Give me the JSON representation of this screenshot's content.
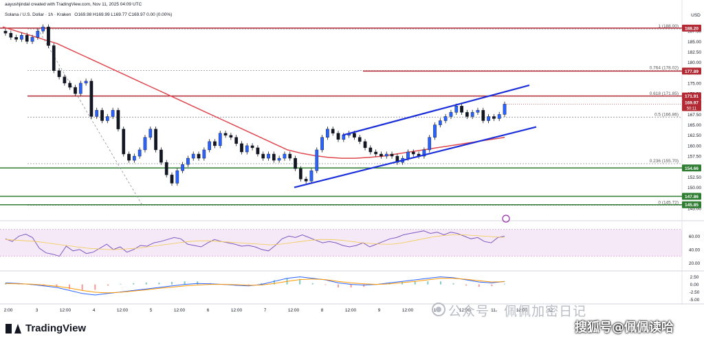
{
  "header": {
    "created_by": "aayushjindal created with TradingView.com, Nov 11, 2025 04:09 UTC",
    "symbol_line": "Solana / U.S. Dollar · 1h · Kraken",
    "ohlc": "O169.98 H169.99 L169.77 C169.97 0.00 (0.00%)"
  },
  "branding": {
    "logo_text": "TradingView",
    "watermark_main": "公众号 · 佩佩加密日记",
    "watermark_small": "搜狐号@佩佩读哈"
  },
  "chart_data": {
    "type": "line",
    "currency": "USD",
    "ylim": [
      142.5,
      190
    ],
    "yticks": [
      145.0,
      147.5,
      150.0,
      152.5,
      155.0,
      157.5,
      160.0,
      162.5,
      165.0,
      167.5,
      170.0,
      172.5,
      175.0,
      177.5,
      180.0,
      182.5,
      185.0,
      187.5
    ],
    "xticks": [
      "2:00",
      "3",
      "12:00",
      "4",
      "12:00",
      "5",
      "12:00",
      "6",
      "12:00",
      "7",
      "12:00",
      "8",
      "12:00",
      "9",
      "12:00",
      "10",
      "12:00",
      "11",
      "12:00",
      "12"
    ],
    "price_series": {
      "name": "SOL/USD",
      "values": [
        187.0,
        186.0,
        185.5,
        186.5,
        185.0,
        186.0,
        187.5,
        188.5,
        184.0,
        178.0,
        176.5,
        175.0,
        174.0,
        172.5,
        175.0,
        175.5,
        167.0,
        168.5,
        166.0,
        167.0,
        168.5,
        164.0,
        158.0,
        156.5,
        157.5,
        159.0,
        162.0,
        164.0,
        159.0,
        156.0,
        153.0,
        151.0,
        154.0,
        155.5,
        157.0,
        158.0,
        157.0,
        159.0,
        161.0,
        160.0,
        163.0,
        162.5,
        162.0,
        160.5,
        158.5,
        160.0,
        159.5,
        158.0,
        157.0,
        158.0,
        156.5,
        157.0,
        158.0,
        157.0,
        154.5,
        152.0,
        151.5,
        154.0,
        159.0,
        162.0,
        164.0,
        163.0,
        161.5,
        162.5,
        163.0,
        162.0,
        161.0,
        159.5,
        158.5,
        158.0,
        157.5,
        158.0,
        157.5,
        156.0,
        157.0,
        158.5,
        158.0,
        157.5,
        159.0,
        162.0,
        165.0,
        166.0,
        167.0,
        168.0,
        169.5,
        168.0,
        167.0,
        168.0,
        168.5,
        166.0,
        167.0,
        166.5,
        167.5,
        169.97
      ]
    },
    "ma_series": {
      "name": "MA",
      "values": [
        188.5,
        187.5,
        186.5,
        185.5,
        184.5,
        183.0,
        181.5,
        180.0,
        178.5,
        177.0,
        175.5,
        174.0,
        172.5,
        171.0,
        169.5,
        168.0,
        166.5,
        165.0,
        163.5,
        162.0,
        160.5,
        159.0,
        158.2,
        157.6,
        157.2,
        157.0,
        157.0,
        157.2,
        157.5,
        158.0,
        158.5,
        159.0,
        159.5,
        160.0,
        160.5,
        161.0,
        161.5,
        162.0
      ]
    },
    "fib_levels": [
      {
        "ratio": "1",
        "price": 188.0,
        "label": "1 (188.00)"
      },
      {
        "ratio": "0.764",
        "price": 178.02,
        "label": "0.764 (178.02)"
      },
      {
        "ratio": "0.618",
        "price": 171.85,
        "label": "0.618 (171.85)"
      },
      {
        "ratio": "0.5",
        "price": 166.86,
        "label": "0.5 (166.86)"
      },
      {
        "ratio": "0.236",
        "price": 155.7,
        "label": "0.236 (155.70)"
      },
      {
        "ratio": "0",
        "price": 145.72,
        "label": "0 (145.72)"
      }
    ],
    "horizontal_levels": [
      {
        "price": 188.2,
        "label": "188.20",
        "color": "#b22833"
      },
      {
        "price": 177.89,
        "label": "177.89",
        "color": "#b22833"
      },
      {
        "price": 171.91,
        "label": "171.91",
        "color": "#b22833"
      },
      {
        "price": 154.66,
        "label": "154.66",
        "color": "#2e7d32"
      },
      {
        "price": 147.86,
        "label": "147.86",
        "color": "#2e7d32"
      },
      {
        "price": 145.85,
        "label": "145.85",
        "color": "#2e7d32"
      }
    ],
    "current_price": {
      "price": 169.97,
      "label": "169.97",
      "countdown": "50:11"
    },
    "channel": {
      "upper": [
        [
          162.5,
          0
        ],
        [
          174.5,
          1
        ]
      ],
      "lower": [
        [
          150.0,
          0
        ],
        [
          164.5,
          1
        ]
      ]
    },
    "rsi": {
      "yticks": [
        20.0,
        40.0,
        60.0
      ],
      "band": [
        30,
        70
      ],
      "values": [
        56,
        52,
        60,
        63,
        58,
        42,
        35,
        33,
        30,
        45,
        38,
        40,
        34,
        36,
        42,
        48,
        40,
        44,
        36,
        40,
        46,
        45,
        50,
        52,
        55,
        58,
        56,
        48,
        46,
        44,
        50,
        55,
        52,
        50,
        48,
        45,
        46,
        44,
        40,
        38,
        46,
        56,
        60,
        58,
        62,
        58,
        54,
        50,
        52,
        50,
        46,
        44,
        46,
        50,
        44,
        48,
        52,
        56,
        58,
        62,
        64,
        66,
        68,
        64,
        66,
        62,
        66,
        64,
        60,
        56,
        58,
        52,
        50,
        58,
        60
      ],
      "signal": [
        55,
        54,
        53,
        52,
        50,
        48,
        46,
        44,
        42,
        41,
        40,
        40,
        41,
        42,
        44,
        46,
        48,
        50,
        52,
        53,
        53,
        52,
        51,
        50,
        49,
        48,
        47,
        48,
        50,
        52,
        54,
        55,
        55,
        54,
        52,
        50,
        49,
        48,
        48,
        50,
        53,
        56,
        59,
        61,
        62,
        62,
        61,
        60,
        59,
        58
      ]
    },
    "macd": {
      "yticks": [
        2.5,
        0.0,
        -2.5,
        -5.0
      ],
      "macd_line": [
        0.5,
        0.3,
        0.0,
        -0.5,
        -1.0,
        -2.0,
        -3.0,
        -3.5,
        -3.0,
        -2.5,
        -2.0,
        -1.5,
        -1.0,
        -0.5,
        0.0,
        0.3,
        0.2,
        0.0,
        -0.3,
        -0.5,
        0.0,
        1.0,
        2.0,
        2.5,
        2.0,
        1.5,
        0.5,
        0.0,
        -0.2,
        0.0,
        0.5,
        1.0,
        1.5,
        2.0,
        2.5,
        2.2,
        1.5,
        0.8,
        0.5,
        1.0
      ],
      "signal_line": [
        0.3,
        0.2,
        0.1,
        -0.2,
        -0.6,
        -1.2,
        -2.0,
        -2.6,
        -2.8,
        -2.6,
        -2.2,
        -1.8,
        -1.3,
        -0.9,
        -0.5,
        -0.2,
        0.0,
        0.0,
        -0.1,
        -0.3,
        -0.2,
        0.3,
        1.0,
        1.6,
        1.8,
        1.6,
        1.0,
        0.5,
        0.2,
        0.0,
        0.2,
        0.6,
        1.0,
        1.5,
        2.0,
        2.0,
        1.7,
        1.2,
        0.8,
        0.9
      ]
    }
  }
}
